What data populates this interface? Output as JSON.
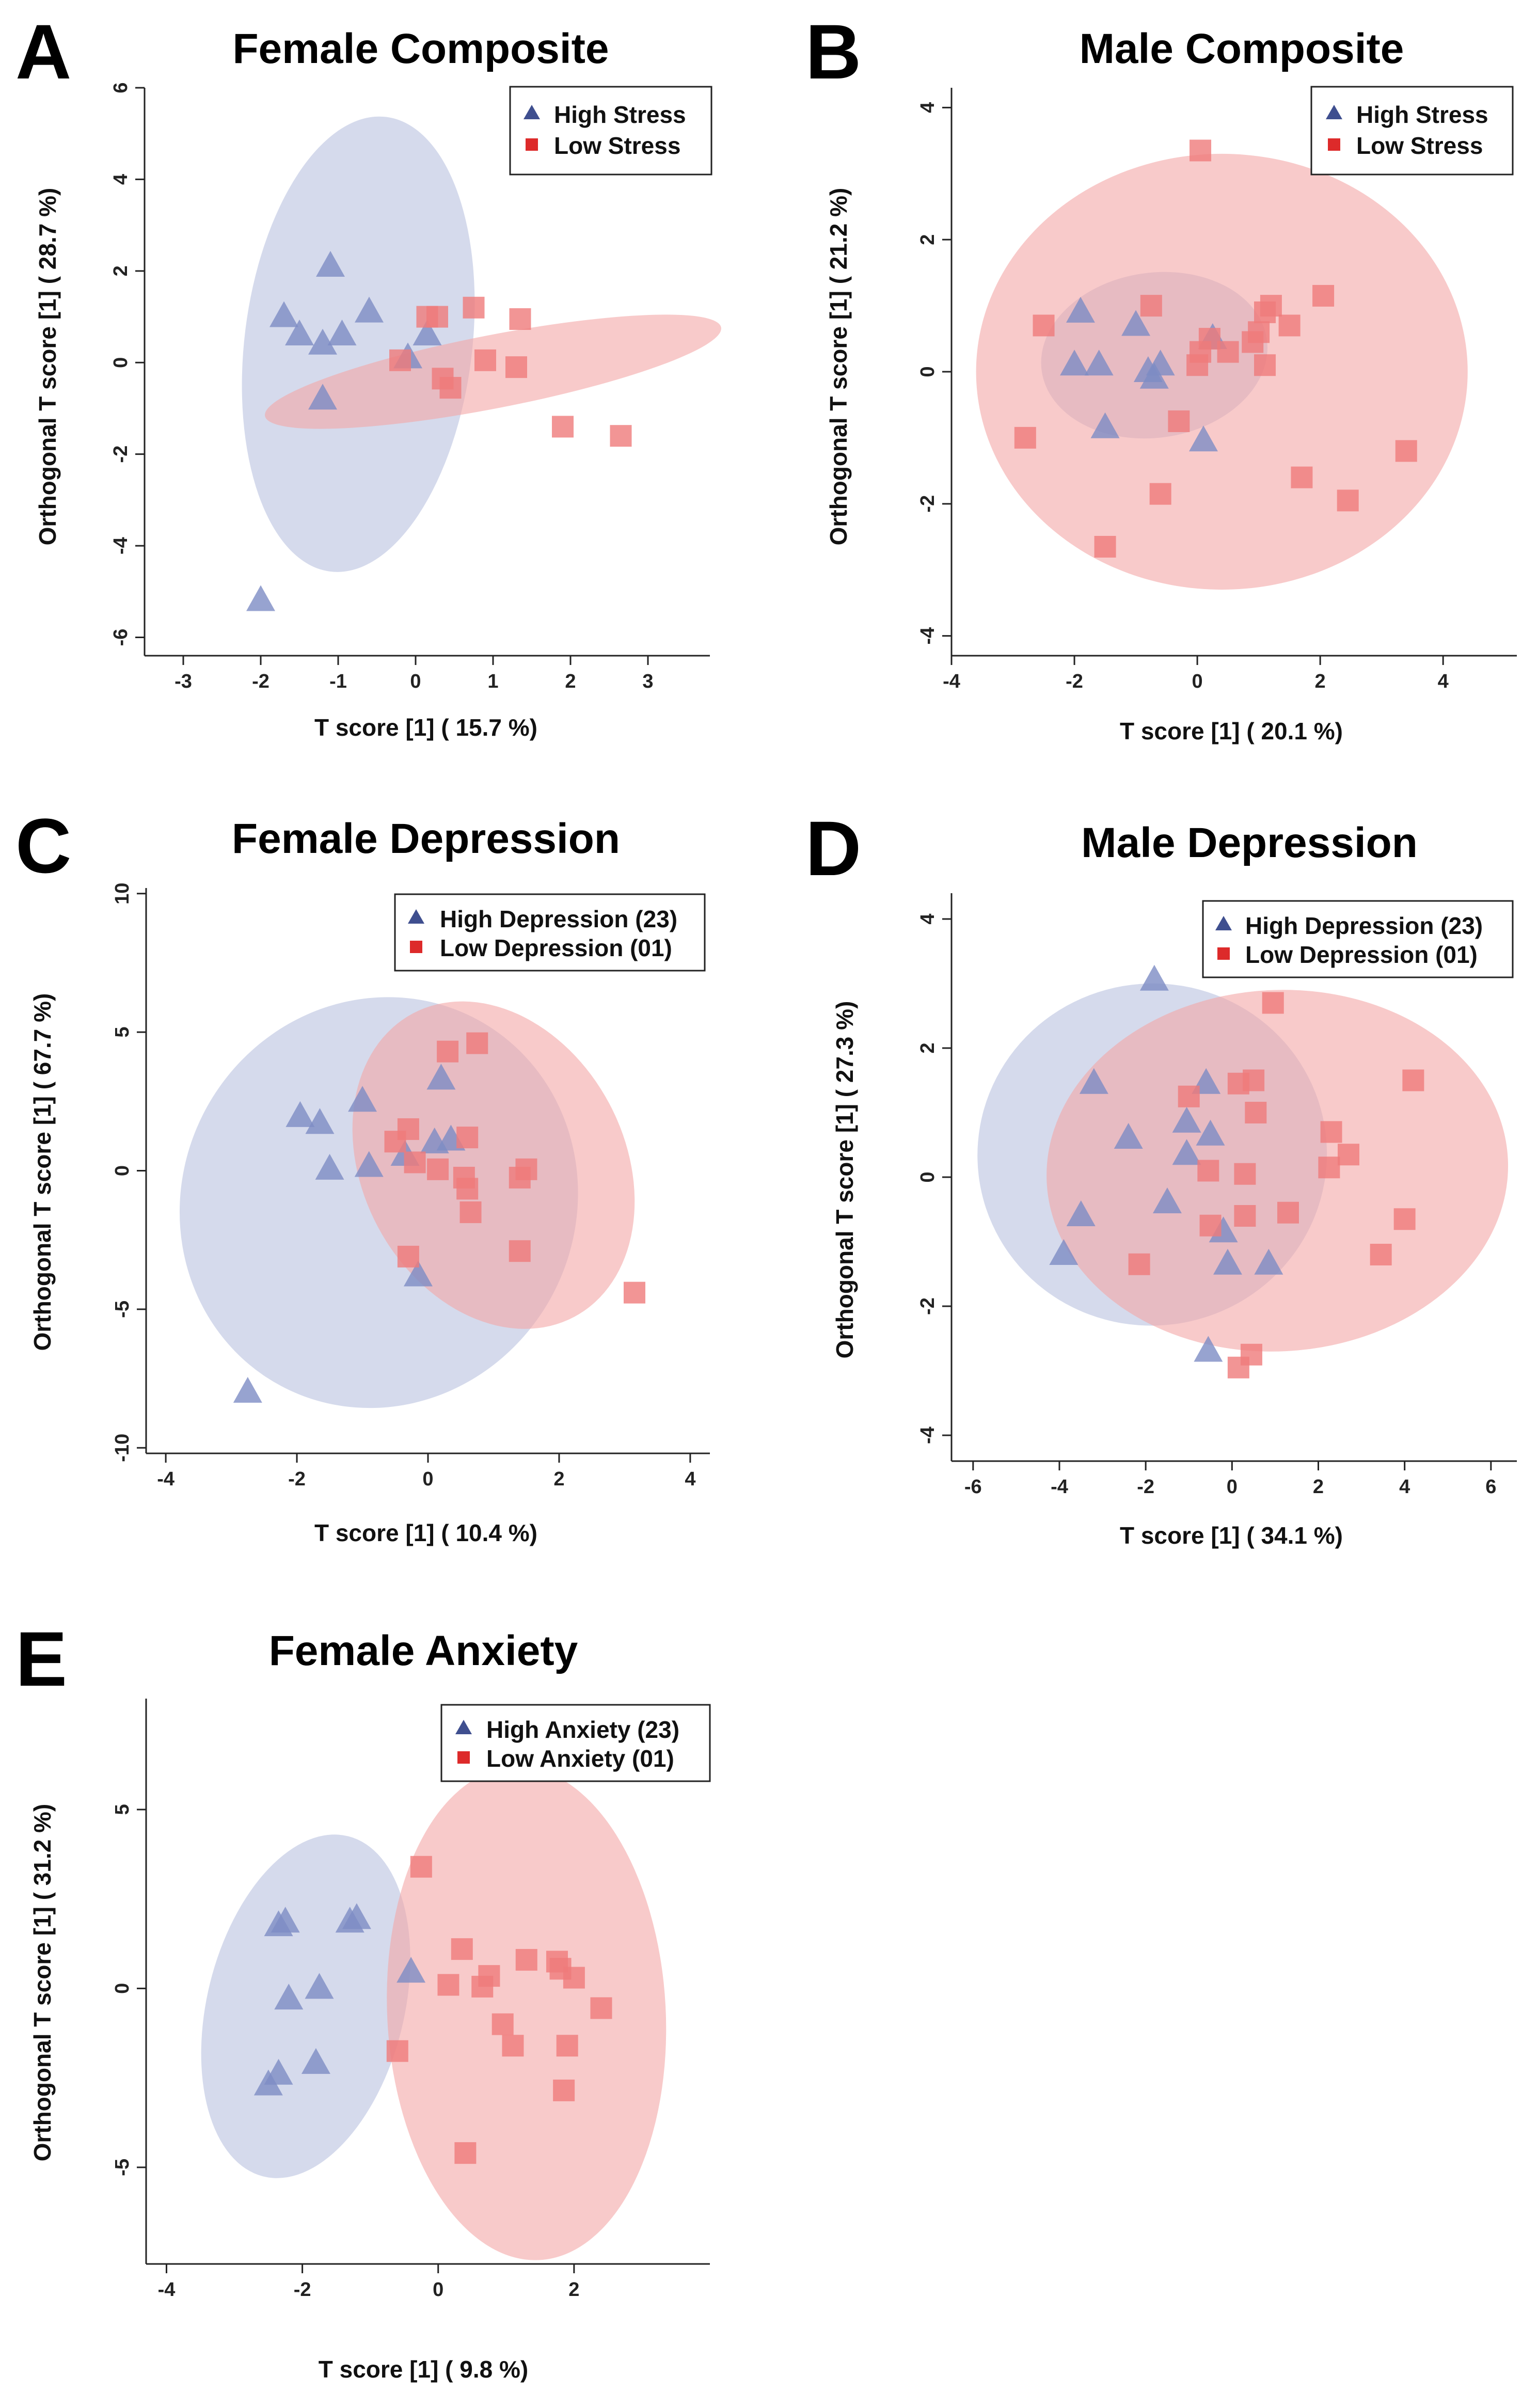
{
  "colors": {
    "high": "#3f4f8f",
    "high_ellipse": "#b9c2e0",
    "low": "#dd2a2a",
    "low_ellipse": "#f4a6a6",
    "high_marker_fill": "#7d8cc4",
    "low_marker_fill": "#ef7b7b"
  },
  "chart_data": [
    {
      "type": "scatter",
      "letter": "A",
      "title": "Female Composite",
      "xlabel": "T score [1] ( 15.7 %)",
      "ylabel": "Orthogonal T score [1] ( 28.7 %)",
      "xlim": [
        -3.5,
        3.8
      ],
      "ylim": [
        -6.4,
        6.0
      ],
      "xticks": [
        -3,
        -2,
        -1,
        0,
        1,
        2,
        3
      ],
      "yticks": [
        -6,
        -4,
        -2,
        0,
        2,
        4,
        6
      ],
      "legend": [
        "High Stress",
        "Low Stress"
      ],
      "ellipses": [
        {
          "group": "high",
          "cx": -0.74,
          "cy": 0.4,
          "rx": 1.47,
          "ry": 5.0,
          "angle": 7
        },
        {
          "group": "low",
          "cx": 1.0,
          "cy": -0.2,
          "rx": 3.0,
          "ry": 0.8,
          "angle": -11
        }
      ],
      "series": [
        {
          "name": "High Stress",
          "group": "high",
          "marker": "triangle",
          "points": [
            [
              -1.1,
              2.1
            ],
            [
              -1.7,
              1.0
            ],
            [
              -1.5,
              0.6
            ],
            [
              -1.2,
              0.4
            ],
            [
              -0.95,
              0.6
            ],
            [
              -0.6,
              1.1
            ],
            [
              0.15,
              0.6
            ],
            [
              -0.1,
              0.1
            ],
            [
              -1.2,
              -0.8
            ],
            [
              -2.0,
              -5.2
            ]
          ]
        },
        {
          "name": "Low Stress",
          "group": "low",
          "marker": "square",
          "points": [
            [
              0.15,
              1.0
            ],
            [
              0.28,
              1.0
            ],
            [
              0.75,
              1.2
            ],
            [
              1.35,
              0.95
            ],
            [
              0.9,
              0.05
            ],
            [
              1.3,
              -0.1
            ],
            [
              -0.2,
              0.05
            ],
            [
              0.35,
              -0.35
            ],
            [
              0.45,
              -0.55
            ],
            [
              1.9,
              -1.4
            ],
            [
              2.65,
              -1.6
            ]
          ]
        }
      ]
    },
    {
      "type": "scatter",
      "letter": "B",
      "title": "Male Composite",
      "xlabel": "T score [1] ( 20.1 %)",
      "ylabel": "Orthogonal T score [1] ( 21.2 %)",
      "xlim": [
        -4.0,
        5.2
      ],
      "ylim": [
        -4.3,
        4.3
      ],
      "xticks": [
        -4,
        -2,
        0,
        2,
        4
      ],
      "yticks": [
        -4,
        -2,
        0,
        2,
        4
      ],
      "legend": [
        "High Stress",
        "Low Stress"
      ],
      "ellipses": [
        {
          "group": "high",
          "cx": -0.7,
          "cy": 0.25,
          "rx": 1.85,
          "ry": 1.25,
          "angle": -8
        },
        {
          "group": "low",
          "cx": 0.4,
          "cy": 0.0,
          "rx": 4.0,
          "ry": 3.3,
          "angle": 0
        }
      ],
      "series": [
        {
          "name": "High Stress",
          "group": "high",
          "marker": "triangle",
          "points": [
            [
              -1.9,
              0.9
            ],
            [
              -1.0,
              0.7
            ],
            [
              -2.0,
              0.1
            ],
            [
              -1.6,
              0.1
            ],
            [
              -0.8,
              0.0
            ],
            [
              -0.6,
              0.1
            ],
            [
              -0.7,
              -0.1
            ],
            [
              0.25,
              0.5
            ],
            [
              -1.5,
              -0.85
            ],
            [
              0.1,
              -1.05
            ]
          ]
        },
        {
          "name": "Low Stress",
          "group": "low",
          "marker": "square",
          "points": [
            [
              0.05,
              3.35
            ],
            [
              -2.5,
              0.7
            ],
            [
              -0.75,
              1.0
            ],
            [
              1.2,
              1.0
            ],
            [
              1.5,
              0.7
            ],
            [
              2.05,
              1.15
            ],
            [
              1.1,
              0.9
            ],
            [
              1.0,
              0.6
            ],
            [
              0.5,
              0.3
            ],
            [
              0.2,
              0.5
            ],
            [
              0.05,
              0.3
            ],
            [
              0.0,
              0.1
            ],
            [
              1.1,
              0.1
            ],
            [
              0.9,
              0.45
            ],
            [
              -0.3,
              -0.75
            ],
            [
              -2.8,
              -1.0
            ],
            [
              -0.6,
              -1.85
            ],
            [
              -1.5,
              -2.65
            ],
            [
              1.7,
              -1.6
            ],
            [
              2.45,
              -1.95
            ],
            [
              3.4,
              -1.2
            ]
          ]
        }
      ]
    },
    {
      "type": "scatter",
      "letter": "C",
      "title": "Female Depression",
      "xlabel": "T score [1] ( 10.4 %)",
      "ylabel": "Orthogonal T score [1] ( 67.7 %)",
      "xlim": [
        -4.3,
        4.3
      ],
      "ylim": [
        -10.2,
        10.2
      ],
      "xticks": [
        -4,
        -2,
        0,
        2,
        4
      ],
      "yticks": [
        -10,
        -5,
        0,
        5,
        10
      ],
      "legend": [
        "High Depression (23)",
        "Low Depression (01)"
      ],
      "ellipses": [
        {
          "group": "high",
          "cx": -0.75,
          "cy": -1.15,
          "rx": 3.0,
          "ry": 7.5,
          "angle": 28
        },
        {
          "group": "low",
          "cx": 1.0,
          "cy": 0.2,
          "rx": 2.0,
          "ry": 6.2,
          "angle": -28
        }
      ],
      "series": [
        {
          "name": "High Depression (23)",
          "group": "high",
          "marker": "triangle",
          "points": [
            [
              -1.95,
              1.95
            ],
            [
              -1.65,
              1.7
            ],
            [
              -1.0,
              2.5
            ],
            [
              -0.9,
              0.15
            ],
            [
              -1.5,
              0.05
            ],
            [
              0.2,
              3.3
            ],
            [
              0.35,
              1.1
            ],
            [
              0.1,
              1.0
            ],
            [
              -0.35,
              0.55
            ],
            [
              -0.15,
              -3.8
            ],
            [
              -2.75,
              -8.0
            ]
          ]
        },
        {
          "name": "Low Depression (01)",
          "group": "low",
          "marker": "square",
          "points": [
            [
              0.75,
              4.6
            ],
            [
              0.3,
              4.3
            ],
            [
              -0.3,
              1.5
            ],
            [
              -0.5,
              1.05
            ],
            [
              0.6,
              1.2
            ],
            [
              0.15,
              0.05
            ],
            [
              -0.2,
              0.3
            ],
            [
              0.55,
              -0.25
            ],
            [
              0.6,
              -0.65
            ],
            [
              0.65,
              -1.5
            ],
            [
              1.4,
              -0.25
            ],
            [
              1.5,
              0.05
            ],
            [
              1.4,
              -2.9
            ],
            [
              -0.3,
              -3.1
            ],
            [
              3.15,
              -4.4
            ]
          ]
        }
      ]
    },
    {
      "type": "scatter",
      "letter": "D",
      "title": "Male Depression",
      "xlabel": "T score [1] ( 34.1 %)",
      "ylabel": "Orthogonal T score [1] ( 27.3 %)",
      "xlim": [
        -6.5,
        6.6
      ],
      "ylim": [
        -4.4,
        4.4
      ],
      "xticks": [
        -6,
        -4,
        -2,
        0,
        2,
        4,
        6
      ],
      "yticks": [
        -4,
        -2,
        0,
        2,
        4
      ],
      "legend": [
        "High Depression (23)",
        "Low Depression (01)"
      ],
      "ellipses": [
        {
          "group": "high",
          "cx": -1.85,
          "cy": 0.35,
          "rx": 4.05,
          "ry": 2.65,
          "angle": -7
        },
        {
          "group": "low",
          "cx": 1.05,
          "cy": 0.1,
          "rx": 5.35,
          "ry": 2.8,
          "angle": -3
        }
      ],
      "series": [
        {
          "name": "High Depression (23)",
          "group": "high",
          "marker": "triangle",
          "points": [
            [
              -1.8,
              3.05
            ],
            [
              -3.2,
              1.45
            ],
            [
              -2.4,
              0.6
            ],
            [
              -1.05,
              0.85
            ],
            [
              -0.6,
              1.45
            ],
            [
              -0.5,
              0.65
            ],
            [
              -1.05,
              0.35
            ],
            [
              -1.5,
              -0.4
            ],
            [
              -3.5,
              -0.6
            ],
            [
              -3.9,
              -1.2
            ],
            [
              -0.2,
              -0.85
            ],
            [
              -0.1,
              -1.35
            ],
            [
              0.85,
              -1.35
            ],
            [
              -0.55,
              -2.7
            ]
          ]
        },
        {
          "name": "Low Depression (01)",
          "group": "low",
          "marker": "square",
          "points": [
            [
              0.95,
              2.7
            ],
            [
              0.5,
              1.5
            ],
            [
              0.15,
              1.45
            ],
            [
              0.55,
              1.0
            ],
            [
              -1.0,
              1.25
            ],
            [
              -0.55,
              0.1
            ],
            [
              0.3,
              0.05
            ],
            [
              2.3,
              0.7
            ],
            [
              2.7,
              0.35
            ],
            [
              2.25,
              0.15
            ],
            [
              4.2,
              1.5
            ],
            [
              1.3,
              -0.55
            ],
            [
              0.3,
              -0.6
            ],
            [
              -0.5,
              -0.75
            ],
            [
              3.45,
              -1.2
            ],
            [
              4.0,
              -0.65
            ],
            [
              -2.15,
              -1.35
            ],
            [
              0.45,
              -2.75
            ],
            [
              0.15,
              -2.95
            ]
          ]
        }
      ]
    },
    {
      "type": "scatter",
      "letter": "E",
      "title": "Female Anxiety",
      "xlabel": "T score [1] ( 9.8 %)",
      "ylabel": "Orthogonal T score [1] ( 31.2 %)",
      "xlim": [
        -4.3,
        4.0
      ],
      "ylim": [
        -7.7,
        8.1
      ],
      "xticks": [
        -4,
        -2,
        0,
        2
      ],
      "yticks": [
        -5,
        0,
        5
      ],
      "legend": [
        "High Anxiety (23)",
        "Low Anxiety (01)"
      ],
      "ellipses": [
        {
          "group": "high",
          "cx": -1.95,
          "cy": -0.5,
          "rx": 1.45,
          "ry": 4.9,
          "angle": 14
        },
        {
          "group": "low",
          "cx": 1.3,
          "cy": -0.7,
          "rx": 2.05,
          "ry": 6.9,
          "angle": -3
        }
      ],
      "series": [
        {
          "name": "High Anxiety (23)",
          "group": "high",
          "marker": "triangle",
          "points": [
            [
              -2.25,
              1.85
            ],
            [
              -2.35,
              1.75
            ],
            [
              -1.3,
              1.85
            ],
            [
              -1.2,
              1.95
            ],
            [
              -0.4,
              0.45
            ],
            [
              -1.75,
              0.0
            ],
            [
              -2.2,
              -0.3
            ],
            [
              -1.8,
              -2.1
            ],
            [
              -2.35,
              -2.4
            ],
            [
              -2.5,
              -2.7
            ]
          ]
        },
        {
          "name": "Low Anxiety (01)",
          "group": "low",
          "marker": "square",
          "points": [
            [
              -0.25,
              3.4
            ],
            [
              0.35,
              1.1
            ],
            [
              0.75,
              0.35
            ],
            [
              0.65,
              0.05
            ],
            [
              0.15,
              0.1
            ],
            [
              1.3,
              0.8
            ],
            [
              1.75,
              0.75
            ],
            [
              1.8,
              0.55
            ],
            [
              2.0,
              0.3
            ],
            [
              2.4,
              -0.55
            ],
            [
              0.95,
              -1.0
            ],
            [
              1.1,
              -1.6
            ],
            [
              1.9,
              -1.6
            ],
            [
              -0.6,
              -1.75
            ],
            [
              1.85,
              -2.85
            ],
            [
              0.4,
              -4.6
            ]
          ]
        }
      ]
    }
  ]
}
